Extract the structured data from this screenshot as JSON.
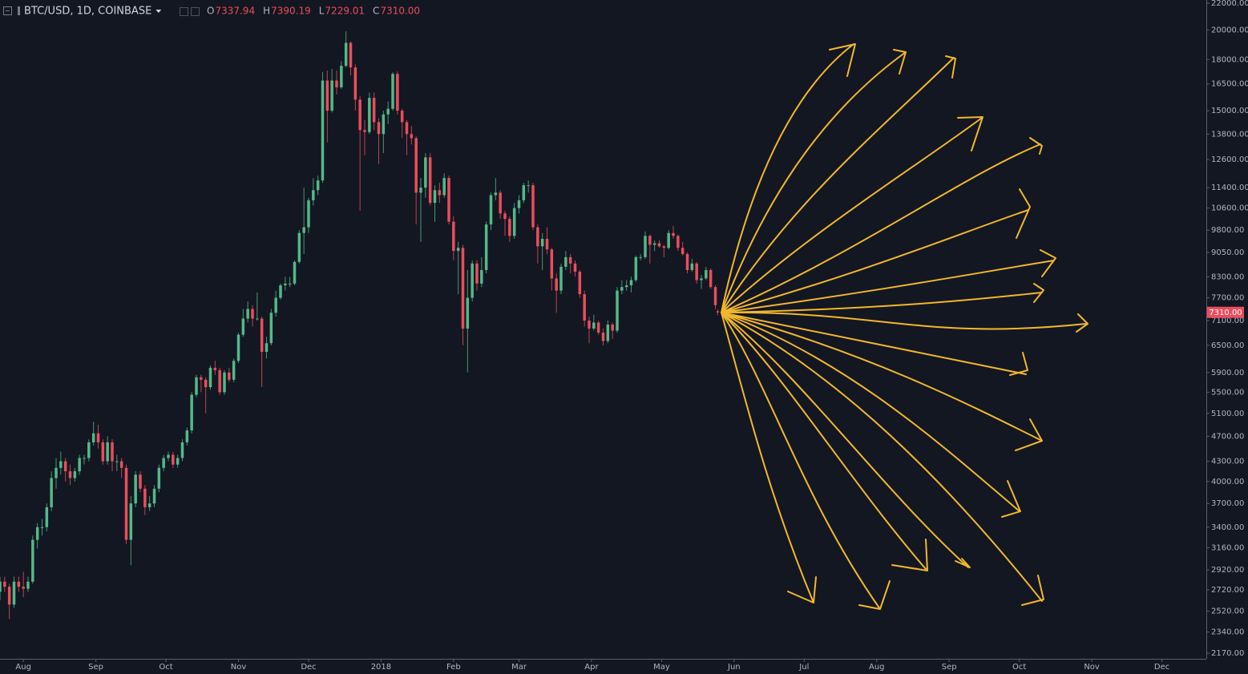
{
  "chart_data": {
    "type": "candlestick",
    "title": "BTC/USD, 1D, COINBASE",
    "legend_labels": [
      "O",
      "H",
      "L",
      "C"
    ],
    "legend_values": [
      "7337.94",
      "7390.19",
      "7229.01",
      "7310.00"
    ],
    "up_color": "#53b987",
    "down_color": "#eb4d5c",
    "log_scale": true,
    "x": [
      -10,
      -8,
      -6,
      -4,
      -2,
      0,
      2,
      4,
      6,
      8,
      10,
      12,
      14,
      16,
      18,
      20,
      22,
      24,
      26,
      28,
      30,
      32,
      34,
      36,
      38,
      40,
      42,
      44,
      46,
      48,
      50,
      52,
      54,
      56,
      58,
      60,
      62,
      64,
      66,
      68,
      70,
      72,
      74,
      76,
      78,
      80,
      82,
      84,
      86,
      88,
      90,
      92,
      94,
      96,
      98,
      100,
      102,
      104,
      106,
      108,
      110,
      112,
      114,
      116,
      118,
      120,
      122,
      124,
      126,
      128,
      130,
      132,
      134,
      136,
      138,
      140,
      142,
      144,
      146,
      148,
      150,
      152,
      154,
      156,
      158,
      160,
      162,
      164,
      166,
      168,
      170,
      172,
      174,
      176,
      178,
      180,
      182,
      184,
      186,
      188,
      190,
      192,
      194,
      196,
      198,
      200,
      202,
      204,
      206,
      208,
      210,
      212,
      214,
      216,
      218,
      220,
      222,
      224,
      226,
      228,
      230,
      232,
      234,
      236,
      238,
      240,
      242,
      244,
      246,
      248,
      250,
      252,
      254,
      256,
      258,
      260,
      262,
      264,
      266,
      268,
      270,
      272,
      274,
      276,
      278,
      280,
      282,
      284,
      286,
      288,
      290,
      292,
      294,
      296,
      297
    ],
    "open": [
      2700,
      2800,
      2750,
      2580,
      2800,
      2750,
      2730,
      2800,
      3250,
      3400,
      3400,
      3650,
      4050,
      4200,
      4300,
      4150,
      4050,
      4150,
      4350,
      4350,
      4600,
      4750,
      4600,
      4300,
      4600,
      4300,
      4300,
      4200,
      3250,
      3700,
      4100,
      3900,
      3650,
      3700,
      3900,
      4200,
      4350,
      4400,
      4250,
      4350,
      4600,
      4800,
      5450,
      5800,
      5750,
      5600,
      6000,
      5950,
      5500,
      5900,
      5750,
      6150,
      6750,
      7150,
      7400,
      7150,
      7150,
      6350,
      6550,
      7300,
      7700,
      8050,
      8100,
      8100,
      8750,
      9700,
      9900,
      10900,
      11300,
      11700,
      16700,
      15000,
      16700,
      16300,
      17600,
      19100,
      17500,
      15600,
      14000,
      13900,
      15700,
      14400,
      13800,
      14800,
      15100,
      17100,
      15000,
      14400,
      13800,
      13600,
      11200,
      11400,
      12700,
      10800,
      11300,
      11100,
      11800,
      10100,
      9100,
      9200,
      6900,
      7700,
      8700,
      8100,
      8500,
      10000,
      11100,
      11200,
      10400,
      10200,
      9600,
      10600,
      10900,
      11500,
      11500,
      9900,
      9250,
      9500,
      9150,
      8250,
      7900,
      8600,
      8900,
      8700,
      8450,
      7800,
      7100,
      6900,
      7050,
      6800,
      6600,
      7000,
      6850,
      7900,
      8000,
      8050,
      8200,
      8900,
      8900,
      9600,
      9300,
      9350,
      9250,
      9200,
      9700,
      9600,
      9200,
      9000,
      8500,
      8700,
      8200,
      8250,
      8500,
      8000,
      7337.94
    ],
    "high": [
      2850,
      2850,
      2780,
      2850,
      2850,
      2900,
      2850,
      3300,
      3450,
      3500,
      3700,
      4150,
      4350,
      4450,
      4350,
      4250,
      4200,
      4400,
      4400,
      4650,
      4950,
      4900,
      4650,
      4700,
      4650,
      4400,
      4350,
      4250,
      3800,
      4150,
      4150,
      3950,
      3800,
      3950,
      4250,
      4400,
      4450,
      4450,
      4400,
      4650,
      4850,
      5500,
      5850,
      5850,
      5800,
      6050,
      6150,
      6000,
      5950,
      6000,
      6200,
      6800,
      7400,
      7600,
      7500,
      7850,
      7200,
      6700,
      7400,
      7900,
      8100,
      8300,
      8300,
      8800,
      9800,
      11400,
      11000,
      11800,
      11900,
      17200,
      17300,
      17400,
      17300,
      17900,
      19900,
      19200,
      17700,
      15800,
      14500,
      16000,
      16000,
      14600,
      15000,
      15500,
      17200,
      17250,
      15100,
      14500,
      14200,
      13700,
      11800,
      12900,
      12900,
      11500,
      11600,
      12000,
      11900,
      10300,
      9400,
      9300,
      8500,
      8800,
      8800,
      8900,
      10100,
      11200,
      11800,
      11300,
      10500,
      10300,
      10800,
      11100,
      11600,
      11700,
      11600,
      10000,
      9700,
      9900,
      9200,
      8400,
      8700,
      9100,
      9000,
      8800,
      8500,
      7900,
      7200,
      7250,
      7100,
      6900,
      7100,
      7050,
      8000,
      8200,
      8200,
      8300,
      8950,
      9000,
      9750,
      9650,
      9450,
      9450,
      9300,
      9800,
      9950,
      9650,
      9400,
      9050,
      8850,
      8750,
      8350,
      8600,
      8550,
      8050,
      7390.19
    ],
    "low": [
      2620,
      2700,
      2450,
      2550,
      2700,
      2650,
      2700,
      2780,
      3150,
      3300,
      3350,
      3600,
      3900,
      4100,
      4000,
      3950,
      4000,
      4100,
      4250,
      4300,
      4550,
      4500,
      4250,
      4250,
      4150,
      4150,
      4050,
      3200,
      2970,
      3650,
      3850,
      3550,
      3600,
      3650,
      3850,
      4150,
      4300,
      4200,
      4200,
      4300,
      4550,
      4750,
      5400,
      5500,
      5100,
      5550,
      5850,
      5450,
      5450,
      5700,
      5700,
      6100,
      6700,
      7050,
      6950,
      7100,
      5600,
      6200,
      6500,
      7200,
      7650,
      7900,
      8000,
      8050,
      8700,
      9000,
      9700,
      10700,
      11100,
      11600,
      13400,
      14900,
      15900,
      16200,
      17500,
      17000,
      15000,
      10500,
      12800,
      13800,
      14000,
      12400,
      12900,
      14300,
      15000,
      14800,
      13600,
      12800,
      13300,
      10000,
      9400,
      11000,
      10700,
      10100,
      10800,
      11000,
      10000,
      8800,
      7800,
      6500,
      5900,
      7600,
      7900,
      8000,
      8400,
      9800,
      10900,
      10200,
      9600,
      9400,
      9500,
      10400,
      10800,
      11200,
      9800,
      8700,
      8500,
      9000,
      7900,
      7300,
      7800,
      8500,
      8400,
      8300,
      7700,
      6950,
      6550,
      6850,
      6750,
      6500,
      6550,
      6650,
      6800,
      7800,
      7900,
      7850,
      8150,
      8800,
      8850,
      8700,
      9100,
      9200,
      8900,
      9150,
      9500,
      9100,
      8950,
      8400,
      8450,
      8100,
      7950,
      8200,
      7950,
      7400,
      7229.01
    ],
    "close": [
      2800,
      2750,
      2580,
      2800,
      2750,
      2730,
      2800,
      3250,
      3400,
      3400,
      3650,
      4050,
      4200,
      4300,
      4150,
      4050,
      4150,
      4350,
      4350,
      4600,
      4750,
      4600,
      4300,
      4600,
      4300,
      4300,
      4200,
      3250,
      3700,
      4100,
      3900,
      3650,
      3700,
      3900,
      4200,
      4350,
      4400,
      4250,
      4350,
      4600,
      4800,
      5450,
      5800,
      5750,
      5600,
      6000,
      5950,
      5500,
      5900,
      5750,
      6150,
      6750,
      7150,
      7400,
      7150,
      7150,
      6350,
      6550,
      7300,
      7700,
      8050,
      8100,
      8100,
      8750,
      9700,
      9900,
      10900,
      11300,
      11700,
      16700,
      15000,
      16700,
      16300,
      17600,
      19100,
      17500,
      15600,
      14000,
      13900,
      15700,
      14400,
      13800,
      14800,
      15100,
      17100,
      15000,
      14400,
      13800,
      13600,
      11200,
      11400,
      12700,
      10800,
      11300,
      11100,
      11800,
      10100,
      9100,
      9200,
      6900,
      7700,
      8700,
      8100,
      8500,
      10000,
      11100,
      11200,
      10400,
      10200,
      9600,
      10600,
      10900,
      11500,
      11500,
      9900,
      9250,
      9500,
      9150,
      8250,
      7900,
      8600,
      8900,
      8700,
      8450,
      7800,
      7100,
      6900,
      7050,
      6800,
      6600,
      7000,
      6850,
      7900,
      8000,
      8050,
      8200,
      8900,
      8900,
      9600,
      9300,
      9350,
      9250,
      9200,
      9700,
      9600,
      9200,
      9000,
      8500,
      8700,
      8200,
      8250,
      8500,
      8000,
      7500,
      7310
    ],
    "xlim": [
      -10,
      506
    ],
    "xticks": [
      {
        "value": 0,
        "label": "Aug"
      },
      {
        "value": 31,
        "label": "Sep"
      },
      {
        "value": 61,
        "label": "Oct"
      },
      {
        "value": 92,
        "label": "Nov"
      },
      {
        "value": 122,
        "label": "Dec"
      },
      {
        "value": 153,
        "label": "2018"
      },
      {
        "value": 184,
        "label": "Feb"
      },
      {
        "value": 212,
        "label": "Mar"
      },
      {
        "value": 243,
        "label": "Apr"
      },
      {
        "value": 273,
        "label": "May"
      },
      {
        "value": 304,
        "label": "Jun"
      },
      {
        "value": 334,
        "label": "Jul"
      },
      {
        "value": 365,
        "label": "Aug"
      },
      {
        "value": 396,
        "label": "Sep"
      },
      {
        "value": 426,
        "label": "Oct"
      },
      {
        "value": 457,
        "label": "Nov"
      },
      {
        "value": 487,
        "label": "Dec"
      }
    ],
    "ylim": [
      2170,
      22000
    ],
    "yticks": [
      {
        "value": 22000,
        "label": "22000.00"
      },
      {
        "value": 20000,
        "label": "20000.00"
      },
      {
        "value": 18000,
        "label": "18000.00"
      },
      {
        "value": 16500,
        "label": "16500.00"
      },
      {
        "value": 15000,
        "label": "15000.00"
      },
      {
        "value": 13800,
        "label": "13800.00"
      },
      {
        "value": 12600,
        "label": "12600.00"
      },
      {
        "value": 11400,
        "label": "11400.00"
      },
      {
        "value": 10600,
        "label": "10600.00"
      },
      {
        "value": 9800,
        "label": "9800.00"
      },
      {
        "value": 9050,
        "label": "9050.00"
      },
      {
        "value": 8300,
        "label": "8300.00"
      },
      {
        "value": 7700,
        "label": "7700.00"
      },
      {
        "value": 7100,
        "label": "7100.00"
      },
      {
        "value": 6500,
        "label": "6500.00"
      },
      {
        "value": 5900,
        "label": "5900.00"
      },
      {
        "value": 5500,
        "label": "5500.00"
      },
      {
        "value": 5100,
        "label": "5100.00"
      },
      {
        "value": 4700,
        "label": "4700.00"
      },
      {
        "value": 4300,
        "label": "4300.00"
      },
      {
        "value": 4000,
        "label": "4000.00"
      },
      {
        "value": 3700,
        "label": "3700.00"
      },
      {
        "value": 3400,
        "label": "3400.00"
      },
      {
        "value": 3160,
        "label": "3160.00"
      },
      {
        "value": 2920,
        "label": "2920.00"
      },
      {
        "value": 2720,
        "label": "2720.00"
      },
      {
        "value": 2520,
        "label": "2520.00"
      },
      {
        "value": 2340,
        "label": "2340.00"
      },
      {
        "value": 2170,
        "label": "2170.00"
      }
    ]
  }
}
